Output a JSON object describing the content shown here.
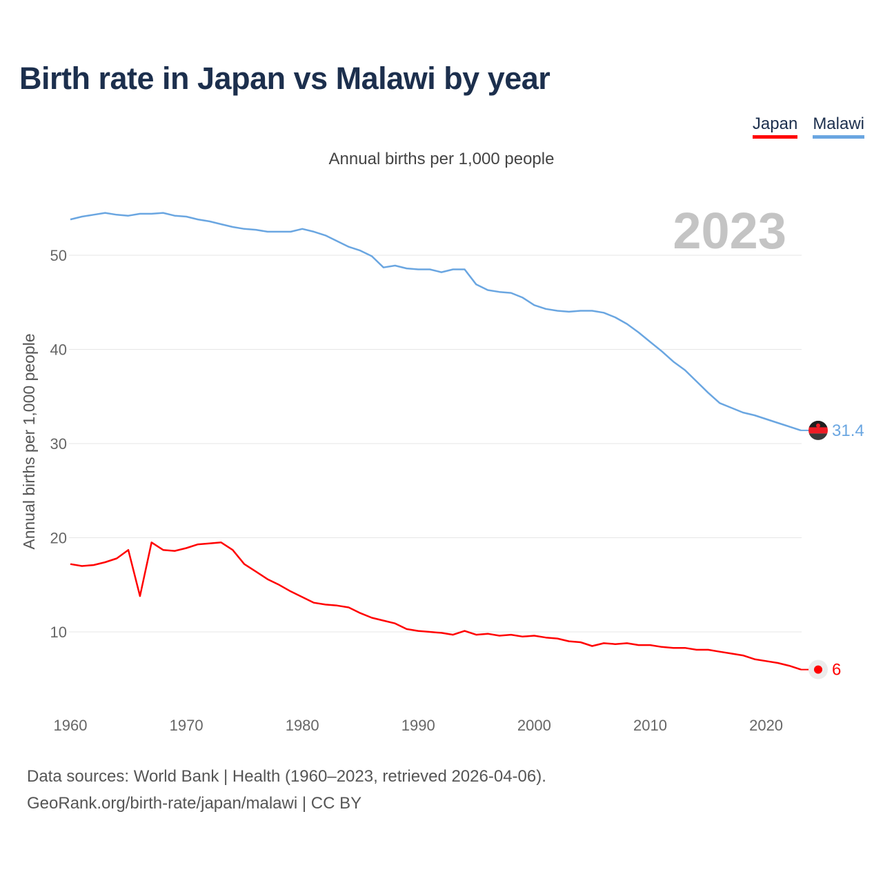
{
  "title": "Birth rate in Japan vs Malawi by year",
  "subtitle": "Annual births per 1,000 people",
  "legend": [
    {
      "label": "Japan",
      "color": "#ff0000"
    },
    {
      "label": "Malawi",
      "color": "#6aa6e1"
    }
  ],
  "year_display": "2023",
  "footer": {
    "line1": "Data sources: World Bank | Health (1960–2023, retrieved 2026-04-06).",
    "line2": "GeoRank.org/birth-rate/japan/malawi | CC BY"
  },
  "chart_data": {
    "type": "line",
    "title": "Birth rate in Japan vs Malawi by year",
    "xlabel": "",
    "ylabel": "Annual births per 1,000 people",
    "xlim": [
      1960,
      2023
    ],
    "ylim": [
      3,
      56
    ],
    "x_ticks": [
      1960,
      1970,
      1980,
      1990,
      2000,
      2010,
      2020
    ],
    "y_ticks": [
      10,
      20,
      30,
      40,
      50
    ],
    "x": [
      1960,
      1961,
      1962,
      1963,
      1964,
      1965,
      1966,
      1967,
      1968,
      1969,
      1970,
      1971,
      1972,
      1973,
      1974,
      1975,
      1976,
      1977,
      1978,
      1979,
      1980,
      1981,
      1982,
      1983,
      1984,
      1985,
      1986,
      1987,
      1988,
      1989,
      1990,
      1991,
      1992,
      1993,
      1994,
      1995,
      1996,
      1997,
      1998,
      1999,
      2000,
      2001,
      2002,
      2003,
      2004,
      2005,
      2006,
      2007,
      2008,
      2009,
      2010,
      2011,
      2012,
      2013,
      2014,
      2015,
      2016,
      2017,
      2018,
      2019,
      2020,
      2021,
      2022,
      2023
    ],
    "series": [
      {
        "name": "Japan",
        "color": "#ff0000",
        "end_label": "6",
        "values": [
          17.2,
          17.0,
          17.1,
          17.4,
          17.8,
          18.7,
          13.8,
          19.5,
          18.7,
          18.6,
          18.9,
          19.3,
          19.4,
          19.5,
          18.7,
          17.2,
          16.4,
          15.6,
          15.0,
          14.3,
          13.7,
          13.1,
          12.9,
          12.8,
          12.6,
          12.0,
          11.5,
          11.2,
          10.9,
          10.3,
          10.1,
          10.0,
          9.9,
          9.7,
          10.1,
          9.7,
          9.8,
          9.6,
          9.7,
          9.5,
          9.6,
          9.4,
          9.3,
          9.0,
          8.9,
          8.5,
          8.8,
          8.7,
          8.8,
          8.6,
          8.6,
          8.4,
          8.3,
          8.3,
          8.1,
          8.1,
          7.9,
          7.7,
          7.5,
          7.1,
          6.9,
          6.7,
          6.4,
          6.0
        ]
      },
      {
        "name": "Malawi",
        "color": "#6aa6e1",
        "end_label": "31.4",
        "values": [
          53.8,
          54.1,
          54.3,
          54.5,
          54.3,
          54.2,
          54.4,
          54.4,
          54.5,
          54.2,
          54.1,
          53.8,
          53.6,
          53.3,
          53.0,
          52.8,
          52.7,
          52.5,
          52.5,
          52.5,
          52.8,
          52.5,
          52.1,
          51.5,
          50.9,
          50.5,
          49.9,
          48.7,
          48.9,
          48.6,
          48.5,
          48.5,
          48.2,
          48.5,
          48.5,
          46.9,
          46.3,
          46.1,
          46.0,
          45.5,
          44.7,
          44.3,
          44.1,
          44.0,
          44.1,
          44.1,
          43.9,
          43.4,
          42.7,
          41.8,
          40.8,
          39.8,
          38.7,
          37.8,
          36.6,
          35.4,
          34.3,
          33.8,
          33.3,
          33.0,
          32.6,
          32.2,
          31.8,
          31.4
        ]
      }
    ]
  }
}
